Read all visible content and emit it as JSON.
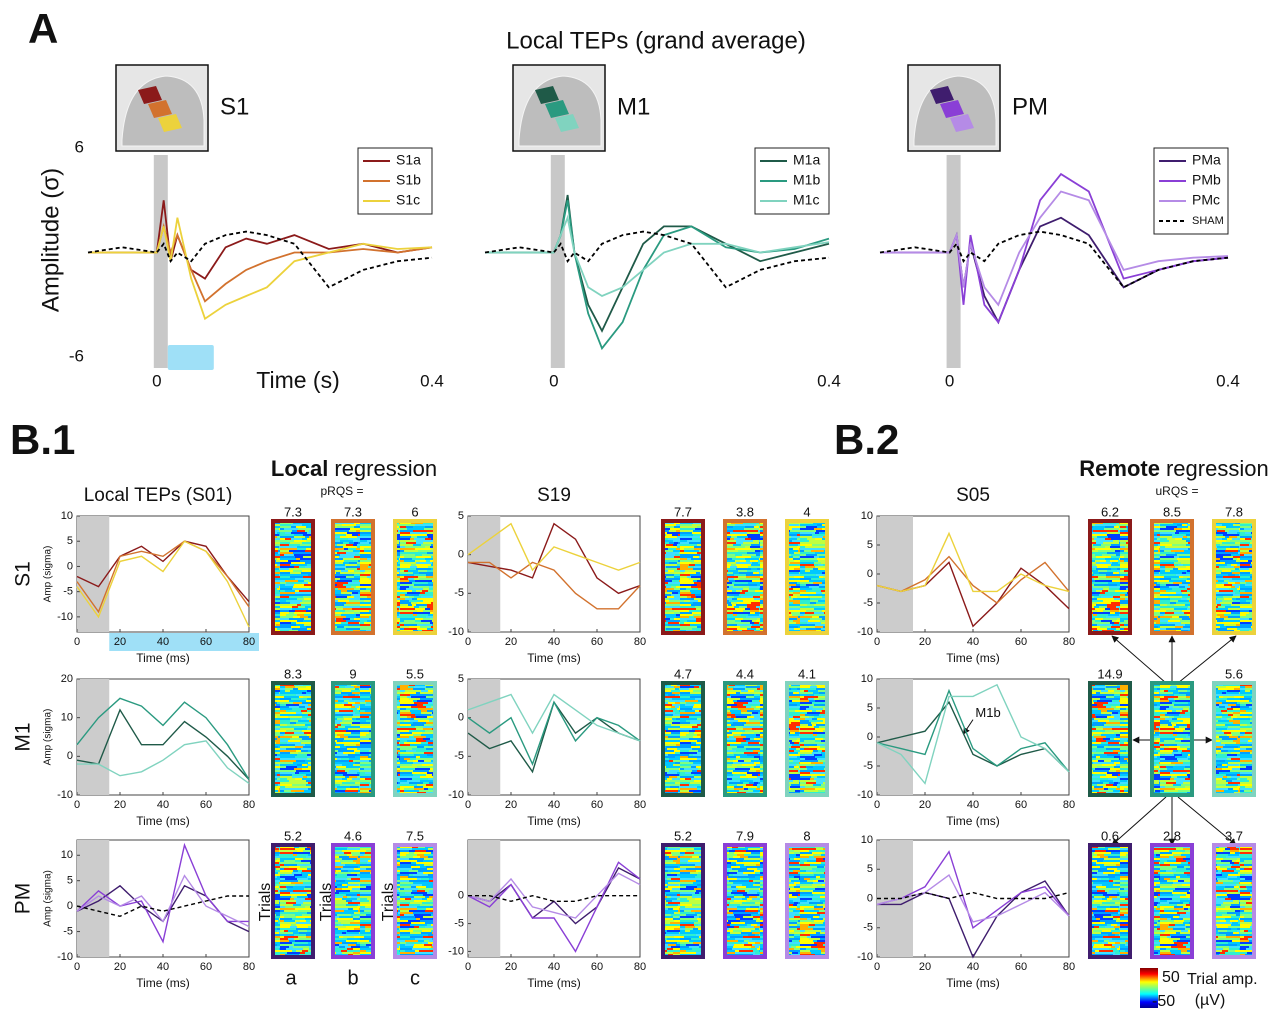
{
  "figure": {
    "panel_a": "A",
    "panel_b1": "B.1",
    "panel_b2": "B.2",
    "a_title": "Local TEPs (grand average)",
    "local_bold": "Local",
    "local_rest": "regression",
    "prqs": "pRQS =",
    "remote_bold": "Remote",
    "remote_rest": "regression",
    "urqs": "uRQS =",
    "trials": [
      "Trials",
      "Trials",
      "Trials"
    ],
    "conditions": [
      "a",
      "b",
      "c"
    ],
    "colorbar": {
      "ticks": [
        50,
        -50
      ],
      "label": "Trial amp.",
      "unit": "(µV)"
    }
  },
  "chart_data": [
    {
      "type": "line",
      "title": "S1",
      "ylabel": "Amplitude (σ)",
      "xlabel": "Time (s)",
      "x": [
        -0.1,
        -0.05,
        0,
        0.01,
        0.02,
        0.03,
        0.05,
        0.07,
        0.1,
        0.13,
        0.16,
        0.2,
        0.25,
        0.3,
        0.35,
        0.4
      ],
      "xlim": [
        -0.1,
        0.4
      ],
      "ylim": [
        -6,
        6
      ],
      "xticks": [
        0,
        0.4
      ],
      "yticks": [
        -6,
        6
      ],
      "series": [
        {
          "name": "S1a",
          "color": "#8b1a1a",
          "values": [
            0,
            0,
            0,
            3,
            -0.5,
            1,
            -1,
            -1.5,
            0.3,
            0.8,
            0.5,
            1,
            0.2,
            0.5,
            0,
            0.3
          ]
        },
        {
          "name": "S1b",
          "color": "#d2722e",
          "values": [
            0,
            0,
            0,
            1.5,
            0,
            1,
            -1,
            -2.8,
            -1.8,
            -1,
            -0.5,
            0,
            0,
            0.2,
            0,
            0.3
          ]
        },
        {
          "name": "S1c",
          "color": "#ecd23c",
          "values": [
            0,
            0,
            0,
            1.5,
            -0.5,
            2,
            -1.5,
            -3.8,
            -3,
            -2.5,
            -2,
            -0.5,
            0,
            0.5,
            0.2,
            0.3
          ]
        },
        {
          "color": "#000000",
          "style": "dashed",
          "values": [
            0,
            0.3,
            0,
            0.5,
            -0.5,
            0,
            -0.5,
            0.5,
            1,
            1.2,
            1,
            0.5,
            -2,
            -1,
            -0.5,
            -0.3
          ]
        }
      ]
    },
    {
      "type": "line",
      "title": "M1",
      "x": [
        -0.1,
        -0.05,
        0,
        0.01,
        0.02,
        0.03,
        0.05,
        0.07,
        0.1,
        0.13,
        0.16,
        0.2,
        0.25,
        0.3,
        0.35,
        0.4
      ],
      "xlim": [
        -0.1,
        0.4
      ],
      "ylim": [
        -6,
        6
      ],
      "xticks": [
        0,
        0.4
      ],
      "series": [
        {
          "name": "M1a",
          "color": "#1f5a48",
          "values": [
            0,
            0,
            0,
            1,
            3.3,
            0,
            -3,
            -4.5,
            -2,
            0.5,
            1.5,
            1.5,
            0.5,
            -0.5,
            0,
            0.5
          ]
        },
        {
          "name": "M1b",
          "color": "#2a9a80",
          "values": [
            0,
            0,
            0,
            1,
            3,
            0,
            -3.5,
            -5.5,
            -4,
            -1,
            1,
            1.5,
            0.3,
            0,
            0.2,
            0.8
          ]
        },
        {
          "name": "M1c",
          "color": "#80d3bf",
          "values": [
            0,
            0,
            0,
            1,
            2,
            0,
            -2,
            -2.5,
            -2,
            -1,
            0,
            0.5,
            0.5,
            0,
            0.3,
            0.6
          ]
        },
        {
          "color": "#000000",
          "style": "dashed",
          "values": [
            0,
            0.3,
            0,
            0.5,
            -0.5,
            0,
            -0.5,
            0.5,
            1,
            1.2,
            1,
            0.5,
            -2,
            -1,
            -0.5,
            -0.3
          ]
        }
      ]
    },
    {
      "type": "line",
      "title": "PM",
      "x": [
        -0.1,
        -0.05,
        0,
        0.01,
        0.02,
        0.03,
        0.05,
        0.07,
        0.1,
        0.13,
        0.16,
        0.2,
        0.25,
        0.3,
        0.35,
        0.4
      ],
      "xlim": [
        -0.1,
        0.4
      ],
      "ylim": [
        -6,
        6
      ],
      "xticks": [
        0,
        0.4
      ],
      "series": [
        {
          "name": "PMa",
          "color": "#3f1d6e",
          "values": [
            0,
            0,
            0,
            1,
            -2,
            0.5,
            -2.5,
            -4,
            -1,
            1.5,
            2,
            1,
            -2,
            -1,
            -0.5,
            -0.3
          ]
        },
        {
          "name": "PMb",
          "color": "#8a3fd6",
          "values": [
            0,
            0,
            0,
            1,
            -3,
            1,
            -3,
            -4,
            -1,
            3,
            4.5,
            3.5,
            -1.5,
            -1,
            -0.5,
            -0.3
          ]
        },
        {
          "name": "PMc",
          "color": "#b58be6",
          "values": [
            0,
            0,
            0,
            1,
            -2,
            0.5,
            -2,
            -3,
            0,
            2,
            3.5,
            3,
            -1,
            -0.5,
            -0.3,
            -0.2
          ]
        },
        {
          "name": "SHAM",
          "color": "#000000",
          "style": "dashed",
          "values": [
            0,
            0.3,
            0,
            0.5,
            -0.5,
            0,
            -0.5,
            0.5,
            1,
            1.2,
            1,
            0.5,
            -2,
            -1,
            -0.5,
            -0.3
          ]
        }
      ]
    },
    {
      "type": "line",
      "title": "Local TEPs (S01)",
      "row_label": "S1",
      "ylabel": "Amp (sigma)",
      "xlabel": "Time (ms)",
      "x": [
        0,
        10,
        20,
        30,
        40,
        50,
        60,
        70,
        80
      ],
      "xlim": [
        0,
        80
      ],
      "ylim": [
        -13,
        10
      ],
      "xticks": [
        0,
        20,
        40,
        60,
        80
      ],
      "yticks": [
        -10,
        -5,
        0,
        5,
        10
      ],
      "rqs": [
        7.3,
        7.3,
        6
      ],
      "series": [
        {
          "color": "#8b1a1a",
          "values": [
            -2,
            -4,
            2,
            4,
            1,
            5,
            4,
            -2,
            -7
          ]
        },
        {
          "color": "#d2722e",
          "values": [
            -3,
            -9,
            2,
            3,
            2,
            5,
            3,
            -2,
            -8
          ]
        },
        {
          "color": "#ecd23c",
          "values": [
            -4,
            -10,
            1,
            2,
            -1,
            5,
            3,
            -3,
            -12
          ]
        }
      ]
    },
    {
      "type": "line",
      "title": "S19",
      "xlabel": "Time (ms)",
      "x": [
        0,
        10,
        20,
        30,
        40,
        50,
        60,
        70,
        80
      ],
      "xlim": [
        0,
        80
      ],
      "ylim": [
        -10,
        5
      ],
      "xticks": [
        0,
        20,
        40,
        60,
        80
      ],
      "yticks": [
        -10,
        -5,
        0,
        5
      ],
      "rqs": [
        7.7,
        3.8,
        4
      ],
      "series": [
        {
          "color": "#8b1a1a",
          "values": [
            -1,
            -1.5,
            -2,
            -3,
            4,
            2,
            -3,
            -5,
            -4
          ]
        },
        {
          "color": "#d2722e",
          "values": [
            -1,
            -1,
            -3,
            -1,
            -2,
            -5,
            -7,
            -7,
            -4
          ]
        },
        {
          "color": "#ecd23c",
          "values": [
            0,
            2,
            4,
            -2,
            1,
            0,
            -1,
            -2,
            -1
          ]
        }
      ]
    },
    {
      "type": "line",
      "title": "S05",
      "xlabel": "Time (ms)",
      "x": [
        0,
        10,
        20,
        30,
        40,
        50,
        60,
        70,
        80
      ],
      "xlim": [
        0,
        80
      ],
      "ylim": [
        -10,
        10
      ],
      "xticks": [
        0,
        20,
        40,
        60,
        80
      ],
      "yticks": [
        -10,
        -5,
        0,
        5,
        10
      ],
      "rqs": [
        6.2,
        8.5,
        7.8
      ],
      "series": [
        {
          "color": "#8b1a1a",
          "values": [
            -2,
            -3,
            -2,
            2,
            -9,
            -5,
            1,
            -2,
            -6
          ]
        },
        {
          "color": "#d2722e",
          "values": [
            -2,
            -3,
            -1,
            3,
            -2,
            -5,
            -1,
            2,
            -3
          ]
        },
        {
          "color": "#ecd23c",
          "values": [
            -2,
            -3,
            -2,
            7,
            -3,
            -3,
            0,
            -2,
            -3
          ]
        }
      ]
    },
    {
      "type": "line",
      "row_label": "M1",
      "ylabel": "Amp (sigma)",
      "xlabel": "Time (ms)",
      "x": [
        0,
        10,
        20,
        30,
        40,
        50,
        60,
        70,
        80
      ],
      "xlim": [
        0,
        80
      ],
      "ylim": [
        -10,
        20
      ],
      "xticks": [
        0,
        20,
        40,
        60,
        80
      ],
      "yticks": [
        -10,
        0,
        10,
        20
      ],
      "rqs": [
        8.3,
        9,
        5.5
      ],
      "series": [
        {
          "color": "#1f5a48",
          "values": [
            -1,
            -2,
            12,
            3,
            3,
            9,
            5,
            0,
            -6
          ]
        },
        {
          "color": "#2a9a80",
          "values": [
            3,
            10,
            15,
            13,
            8,
            14,
            10,
            3,
            -6
          ]
        },
        {
          "color": "#80d3bf",
          "values": [
            -2,
            -2,
            -5,
            -4,
            -1,
            3,
            4,
            -3,
            -7
          ]
        }
      ]
    },
    {
      "type": "line",
      "xlabel": "Time (ms)",
      "x": [
        0,
        10,
        20,
        30,
        40,
        50,
        60,
        70,
        80
      ],
      "xlim": [
        0,
        80
      ],
      "ylim": [
        -10,
        5
      ],
      "xticks": [
        0,
        20,
        40,
        60,
        80
      ],
      "yticks": [
        -10,
        -5,
        0,
        5
      ],
      "rqs": [
        4.7,
        4.4,
        4.1
      ],
      "series": [
        {
          "color": "#1f5a48",
          "values": [
            -2,
            -4,
            -3,
            -7,
            2,
            -2,
            0,
            -2,
            -3
          ]
        },
        {
          "color": "#2a9a80",
          "values": [
            0,
            -2,
            0,
            -6,
            2,
            -3,
            0,
            -1,
            -3
          ]
        },
        {
          "color": "#80d3bf",
          "values": [
            1,
            2,
            3,
            -2,
            3,
            1,
            -1,
            -2,
            -3
          ]
        }
      ]
    },
    {
      "type": "line",
      "xlabel": "Time (ms)",
      "annotation": "M1b",
      "x": [
        0,
        10,
        20,
        30,
        40,
        50,
        60,
        70,
        80
      ],
      "xlim": [
        0,
        80
      ],
      "ylim": [
        -10,
        10
      ],
      "xticks": [
        0,
        20,
        40,
        60,
        80
      ],
      "yticks": [
        -10,
        -5,
        0,
        5,
        10
      ],
      "rqs": [
        14.9,
        null,
        5.6
      ],
      "series": [
        {
          "color": "#1f5a48",
          "values": [
            -1,
            0,
            1,
            6,
            -3,
            -5,
            -3,
            -2,
            -6
          ]
        },
        {
          "color": "#2a9a80",
          "values": [
            -1,
            -2,
            -3,
            8,
            -2,
            -5,
            -2,
            -1,
            -6
          ]
        },
        {
          "color": "#80d3bf",
          "values": [
            -1,
            -3,
            -8,
            7,
            7,
            9,
            0,
            -2,
            -6
          ]
        }
      ]
    },
    {
      "type": "line",
      "row_label": "PM",
      "ylabel": "Amp (sigma)",
      "xlabel": "Time (ms)",
      "x": [
        0,
        10,
        20,
        30,
        40,
        50,
        60,
        70,
        80
      ],
      "xlim": [
        0,
        80
      ],
      "ylim": [
        -10,
        13
      ],
      "xticks": [
        0,
        20,
        40,
        60,
        80
      ],
      "yticks": [
        -10,
        -5,
        0,
        5,
        10
      ],
      "rqs": [
        5.2,
        4.6,
        7.5
      ],
      "series": [
        {
          "color": "#3f1d6e",
          "values": [
            -1,
            1,
            4,
            0,
            -3,
            4,
            2,
            -3,
            -5
          ]
        },
        {
          "color": "#8a3fd6",
          "values": [
            -1,
            3,
            0,
            1,
            -7,
            12,
            2,
            -3,
            -3
          ]
        },
        {
          "color": "#b58be6",
          "values": [
            -1,
            2,
            0,
            2,
            -3,
            6,
            0,
            -2,
            -4
          ]
        },
        {
          "color": "#000000",
          "style": "dashed",
          "values": [
            0,
            -1,
            -2,
            0,
            -1,
            0,
            1,
            2,
            2
          ]
        }
      ]
    },
    {
      "type": "line",
      "xlabel": "Time (ms)",
      "x": [
        0,
        10,
        20,
        30,
        40,
        50,
        60,
        70,
        80
      ],
      "xlim": [
        0,
        80
      ],
      "ylim": [
        -11,
        10
      ],
      "xticks": [
        0,
        20,
        40,
        60,
        80
      ],
      "yticks": [
        -10,
        -5,
        0
      ],
      "rqs": [
        5.2,
        7.9,
        8
      ],
      "series": [
        {
          "color": "#3f1d6e",
          "values": [
            0,
            -1,
            2,
            -4,
            -1,
            -5,
            -2,
            5,
            3
          ]
        },
        {
          "color": "#8a3fd6",
          "values": [
            0,
            -2,
            2,
            -4,
            -4,
            -10,
            -2,
            6,
            3
          ]
        },
        {
          "color": "#b58be6",
          "values": [
            0,
            -1,
            3,
            -2,
            -3,
            -4,
            0,
            4,
            2
          ]
        },
        {
          "color": "#000000",
          "style": "dashed",
          "values": [
            0,
            0,
            -1,
            0,
            -1,
            -1,
            0,
            0,
            0
          ]
        }
      ]
    },
    {
      "type": "line",
      "xlabel": "Time (ms)",
      "x": [
        0,
        10,
        20,
        30,
        40,
        50,
        60,
        70,
        80
      ],
      "xlim": [
        0,
        80
      ],
      "ylim": [
        -10,
        10
      ],
      "xticks": [
        0,
        20,
        40,
        60,
        80
      ],
      "yticks": [
        -10,
        -5,
        0,
        5,
        10
      ],
      "rqs": [
        0.6,
        2.8,
        3.7
      ],
      "series": [
        {
          "color": "#3f1d6e",
          "values": [
            -1,
            -1,
            1,
            0,
            -10,
            -3,
            1,
            3,
            -3
          ]
        },
        {
          "color": "#8a3fd6",
          "values": [
            -1,
            0,
            2,
            8,
            -5,
            -2,
            1,
            2,
            -3
          ]
        },
        {
          "color": "#b58be6",
          "values": [
            -1,
            0,
            1,
            4,
            -4,
            -3,
            -1,
            1,
            -3
          ]
        },
        {
          "color": "#000000",
          "style": "dashed",
          "values": [
            0,
            0,
            1,
            0,
            1,
            0,
            0,
            0,
            1
          ]
        }
      ]
    }
  ]
}
